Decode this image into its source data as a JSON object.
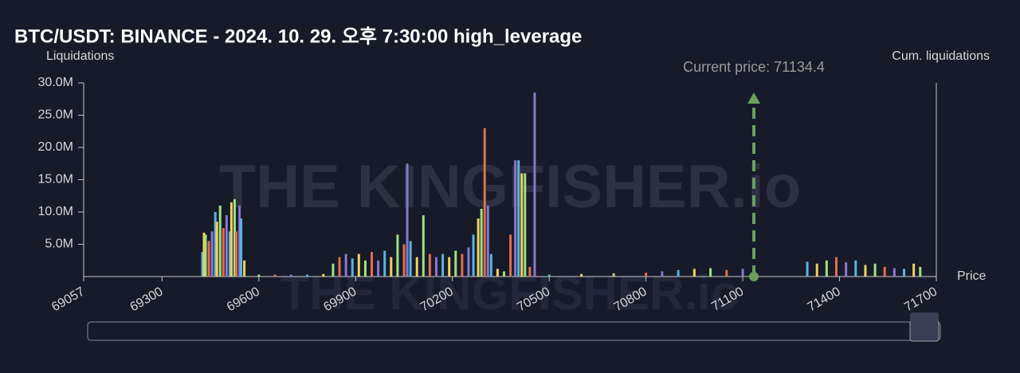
{
  "chart_data": {
    "type": "bar",
    "title": "BTC/USDT: BINANCE - 2024. 10. 29. 오후 7:30:00 high_leverage",
    "y_label": "Liquidations",
    "y2_label": "Cum. liquidations",
    "x_label": "Price",
    "watermark": "THE KINGFISHER.io",
    "xlim": [
      69057,
      71700
    ],
    "xticks": [
      69057,
      69300,
      69600,
      69900,
      70200,
      70500,
      70800,
      71100,
      71400,
      71700
    ],
    "ylim": [
      0,
      30000000
    ],
    "yticks": [
      {
        "value": 5000000,
        "label": "5.0M"
      },
      {
        "value": 10000000,
        "label": "10.0M"
      },
      {
        "value": 15000000,
        "label": "15.0M"
      },
      {
        "value": 20000000,
        "label": "20.0M"
      },
      {
        "value": 25000000,
        "label": "25.0M"
      },
      {
        "value": 30000000,
        "label": "30.0M"
      }
    ],
    "palette": [
      "#5ab4e0",
      "#f0d060",
      "#a0e080",
      "#e07050",
      "#8878d0"
    ],
    "current_price": {
      "value": 71134.4,
      "label": "Current price: 71134.4",
      "color": "#6a9f5e"
    },
    "x": [
      69425,
      69430,
      69435,
      69445,
      69455,
      69465,
      69470,
      69480,
      69490,
      69500,
      69510,
      69515,
      69525,
      69530,
      69540,
      69545,
      69555,
      69600,
      69650,
      69700,
      69750,
      69800,
      69830,
      69850,
      69870,
      69890,
      69910,
      69930,
      69950,
      69970,
      69990,
      70010,
      70030,
      70050,
      70060,
      70070,
      70090,
      70110,
      70130,
      70150,
      70170,
      70190,
      70210,
      70230,
      70250,
      70265,
      70280,
      70290,
      70300,
      70310,
      70320,
      70340,
      70360,
      70380,
      70395,
      70405,
      70415,
      70425,
      70440,
      70455,
      70500,
      70600,
      70700,
      70800,
      70850,
      70900,
      70950,
      71000,
      71050,
      71100,
      71300,
      71330,
      71360,
      71390,
      71420,
      71450,
      71480,
      71510,
      71540,
      71570,
      71600,
      71630,
      71650
    ],
    "values": [
      3800000,
      6800000,
      6500000,
      5500000,
      7000000,
      10000000,
      8500000,
      11000000,
      7500000,
      9500000,
      7000000,
      11500000,
      12000000,
      7000000,
      11000000,
      9000000,
      2500000,
      300000,
      300000,
      300000,
      300000,
      400000,
      2000000,
      3000000,
      3500000,
      2800000,
      3500000,
      2500000,
      3800000,
      2500000,
      4000000,
      3000000,
      6500000,
      5000000,
      17500000,
      5500000,
      3000000,
      9500000,
      3500000,
      3000000,
      3500000,
      3000000,
      4000000,
      3500000,
      4500000,
      6500000,
      9000000,
      10500000,
      23000000,
      11000000,
      3500000,
      1200000,
      800000,
      6500000,
      18000000,
      18000000,
      16000000,
      16000000,
      1500000,
      28500000,
      300000,
      400000,
      500000,
      600000,
      800000,
      1000000,
      1200000,
      1300000,
      1000000,
      1200000,
      2300000,
      2000000,
      2500000,
      3000000,
      2200000,
      2500000,
      1800000,
      2000000,
      1500000,
      1300000,
      1200000,
      2000000,
      1500000
    ]
  }
}
